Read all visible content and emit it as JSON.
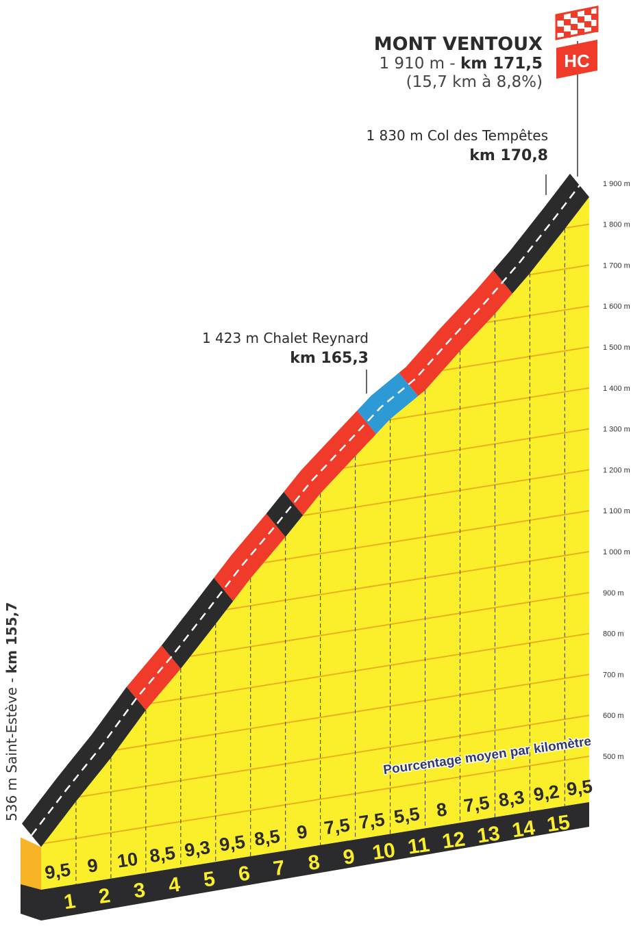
{
  "chart_data": {
    "type": "area",
    "title": "MONT VENTOUX",
    "summit": {
      "altitude_label": "1 910 m",
      "km_label": "km 171,5",
      "summary": "(15,7 km à 8,8%)",
      "category": "HC"
    },
    "start": {
      "label": "536 m Saint-Estève",
      "km_label": "km 155,7",
      "altitude": 536
    },
    "end_altitude": 1910,
    "distance_km": 15.7,
    "waypoints": [
      {
        "altitude_label": "1 830 m",
        "name": "Col des Tempêtes",
        "km_label": "km 170,8",
        "km": 15.1
      },
      {
        "altitude_label": "1 423 m",
        "name": "Chalet Reynard",
        "km_label": "km 165,3",
        "km": 9.6
      }
    ],
    "subtitle": "Pourcentage moyen par kilomètre",
    "km_markers": [
      "1",
      "2",
      "3",
      "4",
      "5",
      "6",
      "7",
      "8",
      "9",
      "10",
      "11",
      "12",
      "13",
      "14",
      "15"
    ],
    "gradients": [
      "9,5",
      "9",
      "10",
      "8,5",
      "9,3",
      "9,5",
      "8,5",
      "9",
      "7,5",
      "7,5",
      "5,5",
      "8",
      "7,5",
      "8,3",
      "9,2",
      "9,5"
    ],
    "gradient_values": [
      9.5,
      9,
      10,
      8.5,
      9.3,
      9.5,
      8.5,
      9,
      7.5,
      7.5,
      5.5,
      8,
      7.5,
      8.3,
      9.2,
      9.5
    ],
    "road_colors": [
      {
        "from": 0,
        "to": 3.0,
        "color": "#2b2b2b"
      },
      {
        "from": 3.0,
        "to": 4.0,
        "color": "#f03a2a"
      },
      {
        "from": 4.0,
        "to": 5.5,
        "color": "#2b2b2b"
      },
      {
        "from": 5.5,
        "to": 7.0,
        "color": "#f03a2a"
      },
      {
        "from": 7.0,
        "to": 7.5,
        "color": "#2b2b2b"
      },
      {
        "from": 7.5,
        "to": 9.6,
        "color": "#f03a2a"
      },
      {
        "from": 9.6,
        "to": 10.8,
        "color": "#2d9ad6"
      },
      {
        "from": 10.8,
        "to": 13.5,
        "color": "#f03a2a"
      },
      {
        "from": 13.5,
        "to": 15.7,
        "color": "#2b2b2b"
      }
    ],
    "y_axis": {
      "ticks": [
        "500 m",
        "600 m",
        "700 m",
        "800 m",
        "900 m",
        "1 000 m",
        "1 100 m",
        "1 200 m",
        "1 300 m",
        "1 400 m",
        "1 500 m",
        "1 600 m",
        "1 700 m",
        "1 800 m",
        "1 900 m"
      ],
      "tick_values": [
        500,
        600,
        700,
        800,
        900,
        1000,
        1100,
        1200,
        1300,
        1400,
        1500,
        1600,
        1700,
        1800,
        1900
      ],
      "range": [
        500,
        1900
      ]
    },
    "colors": {
      "face": "#fbee2a",
      "grid": "#e9b21c",
      "band": "#2b2b2d",
      "side": "#f7b526",
      "km_text": "#fbee2a",
      "flag": "#f03a2a"
    }
  }
}
